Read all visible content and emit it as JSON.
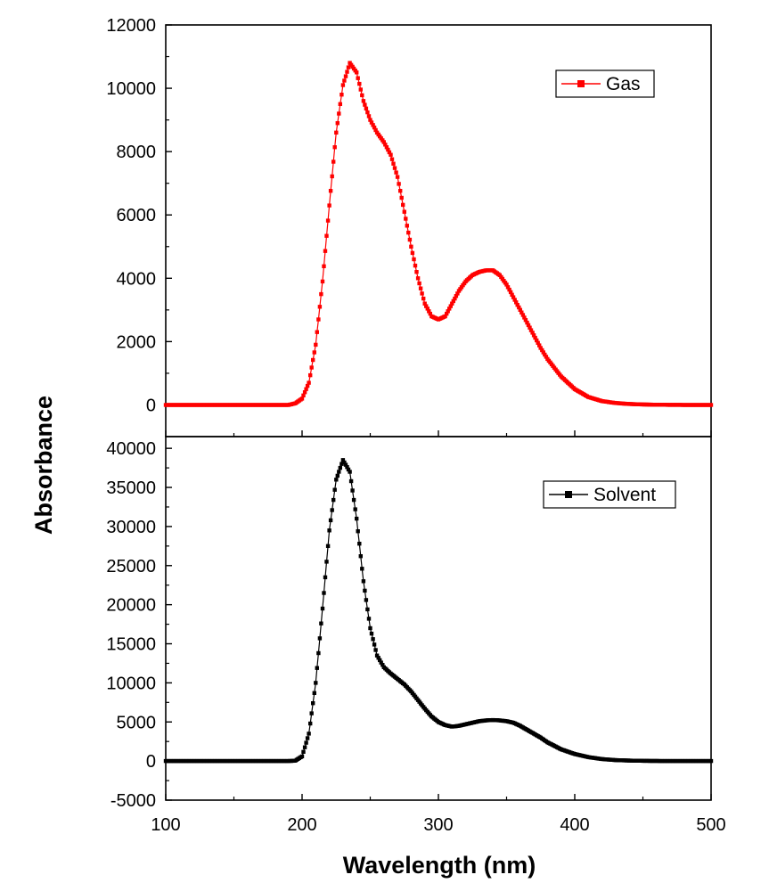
{
  "chart_data": {
    "type": "scatter",
    "xlabel": "Wavelength (nm)",
    "ylabel": "Absorbance",
    "xlim": [
      100,
      500
    ],
    "x_ticks": [
      100,
      200,
      300,
      400,
      500
    ],
    "panels": [
      {
        "series": [
          {
            "name": "Gas",
            "color": "#ff0000",
            "marker": "square",
            "x": [
              100,
              150,
              190,
              195,
              200,
              205,
              210,
              215,
              220,
              225,
              230,
              235,
              240,
              245,
              250,
              255,
              260,
              265,
              270,
              275,
              280,
              285,
              290,
              295,
              300,
              305,
              310,
              315,
              320,
              325,
              330,
              335,
              340,
              345,
              350,
              355,
              360,
              365,
              370,
              375,
              380,
              390,
              400,
              410,
              420,
              430,
              440,
              450,
              460,
              480,
              500
            ],
            "y": [
              0,
              0,
              0,
              50,
              200,
              700,
              1900,
              3900,
              6300,
              8600,
              10100,
              10800,
              10500,
              9600,
              9000,
              8600,
              8300,
              7900,
              7200,
              6100,
              5000,
              4000,
              3200,
              2800,
              2700,
              2800,
              3200,
              3600,
              3900,
              4100,
              4200,
              4250,
              4250,
              4100,
              3800,
              3400,
              3000,
              2600,
              2200,
              1800,
              1450,
              900,
              500,
              250,
              120,
              60,
              30,
              15,
              5,
              0,
              0
            ]
          }
        ],
        "ylim": [
          -1000,
          12000
        ],
        "y_ticks": [
          0,
          2000,
          4000,
          6000,
          8000,
          10000,
          12000
        ],
        "legend_position": "top-right"
      },
      {
        "series": [
          {
            "name": "Solvent",
            "color": "#000000",
            "marker": "square",
            "x": [
              100,
              150,
              190,
              195,
              200,
              205,
              210,
              215,
              220,
              225,
              230,
              235,
              240,
              245,
              250,
              255,
              260,
              265,
              270,
              275,
              280,
              285,
              290,
              295,
              300,
              305,
              310,
              315,
              320,
              325,
              330,
              335,
              340,
              345,
              350,
              355,
              360,
              365,
              370,
              375,
              380,
              390,
              400,
              410,
              420,
              430,
              440,
              450,
              460,
              480,
              500
            ],
            "y": [
              0,
              0,
              0,
              50,
              600,
              3500,
              10000,
              19500,
              29500,
              36000,
              38500,
              37000,
              31000,
              23000,
              17000,
              13500,
              12000,
              11200,
              10500,
              9800,
              8900,
              7800,
              6700,
              5700,
              5000,
              4600,
              4400,
              4500,
              4700,
              4900,
              5100,
              5200,
              5250,
              5200,
              5100,
              4900,
              4500,
              4000,
              3500,
              3000,
              2400,
              1500,
              900,
              500,
              250,
              120,
              60,
              30,
              10,
              0,
              0
            ]
          }
        ],
        "ylim": [
          -5000,
          41500
        ],
        "y_ticks": [
          -5000,
          0,
          5000,
          10000,
          15000,
          20000,
          25000,
          30000,
          35000,
          40000
        ],
        "legend_position": "top-right"
      }
    ]
  }
}
